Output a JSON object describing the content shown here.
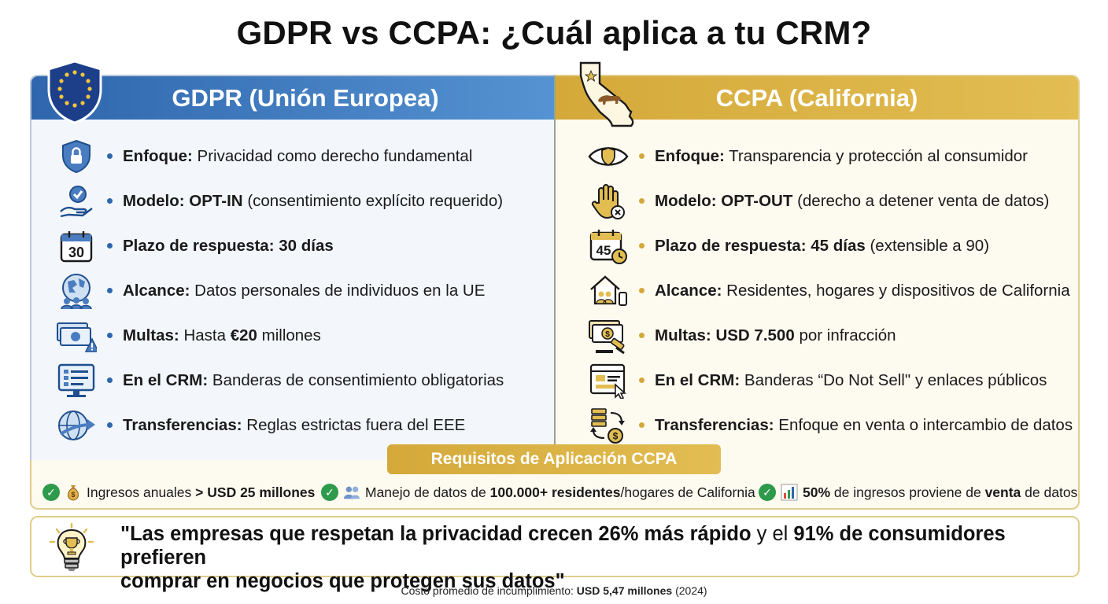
{
  "title": "GDPR vs CCPA: ¿Cuál aplica a tu CRM?",
  "colors": {
    "gdpr_accent": "#2f66ad",
    "ccpa_accent": "#d4a93a",
    "check_green": "#2e9a4b"
  },
  "gdpr": {
    "header": "GDPR (Unión Europea)",
    "rows": [
      {
        "icon": "lock-shield-icon",
        "label": "Enfoque:",
        "text": "Privacidad como derecho fundamental"
      },
      {
        "icon": "hand-check-icon",
        "label": "Modelo: OPT-IN",
        "text": "(consentimiento explícito requerido)"
      },
      {
        "icon": "calendar-icon",
        "calendar_number": "30",
        "label": "Plazo de respuesta: 30 días",
        "text": ""
      },
      {
        "icon": "globe-people-icon",
        "label": "Alcance:",
        "text": "Datos personales de individuos en la UE"
      },
      {
        "icon": "money-warning-icon",
        "label": "Multas:",
        "text_pre": "Hasta",
        "text_bold": "€20",
        "text_post": "millones"
      },
      {
        "icon": "monitor-checklist-icon",
        "label": "En el CRM:",
        "text": "Banderas de consentimiento obligatorias"
      },
      {
        "icon": "globe-arrow-icon",
        "label": "Transferencias:",
        "text": "Reglas estrictas fuera del EEE"
      }
    ]
  },
  "ccpa": {
    "header": "CCPA (California)",
    "rows": [
      {
        "icon": "eye-shield-icon",
        "label": "Enfoque:",
        "text": "Transparencia y protección al consumidor"
      },
      {
        "icon": "stop-hand-icon",
        "label": "Modelo: OPT-OUT",
        "text": "(derecho a detener venta de datos)"
      },
      {
        "icon": "calendar-clock-icon",
        "calendar_number": "45",
        "label": "Plazo de respuesta: 45 días",
        "text": "(extensible a 90)"
      },
      {
        "icon": "house-people-icon",
        "label": "Alcance:",
        "text": "Residentes, hogares y dispositivos de California"
      },
      {
        "icon": "money-gavel-icon",
        "label": "Multas: USD 7.500",
        "text": "por infracción"
      },
      {
        "icon": "browser-cursor-icon",
        "label": "En el CRM:",
        "text": "Banderas “Do Not Sell\" y enlaces públicos"
      },
      {
        "icon": "data-exchange-icon",
        "label": "Transferencias:",
        "text": "Enfoque en venta o intercambio de datos"
      }
    ]
  },
  "requirements": {
    "title": "Requisitos de Aplicación CCPA",
    "items": [
      {
        "icon": "money-bag-icon",
        "pre": "Ingresos anuales",
        "bold": "> USD 25 millones",
        "post": ""
      },
      {
        "icon": "people-icon",
        "pre": "Manejo de datos de",
        "bold": "100.000+ residentes",
        "post": "/hogares de California"
      },
      {
        "icon": "bar-chart-icon",
        "bold": "50%",
        "pre": "de ingresos proviene de",
        "bold2": "venta",
        "post": "de datos"
      }
    ]
  },
  "quote": {
    "icon": "trophy-bulb-icon",
    "line1_a": "\"Las empresas que respetan la privacidad crecen 26% más rápido",
    "line1_b": "y el",
    "line1_c": "91% de consumidores prefieren",
    "line2": "comprar en negocios que protegen sus datos\""
  },
  "footer": {
    "pre": "Costo promedio de incumplimiento:",
    "bold": "USD 5,47 millones",
    "post": "(2024)"
  }
}
